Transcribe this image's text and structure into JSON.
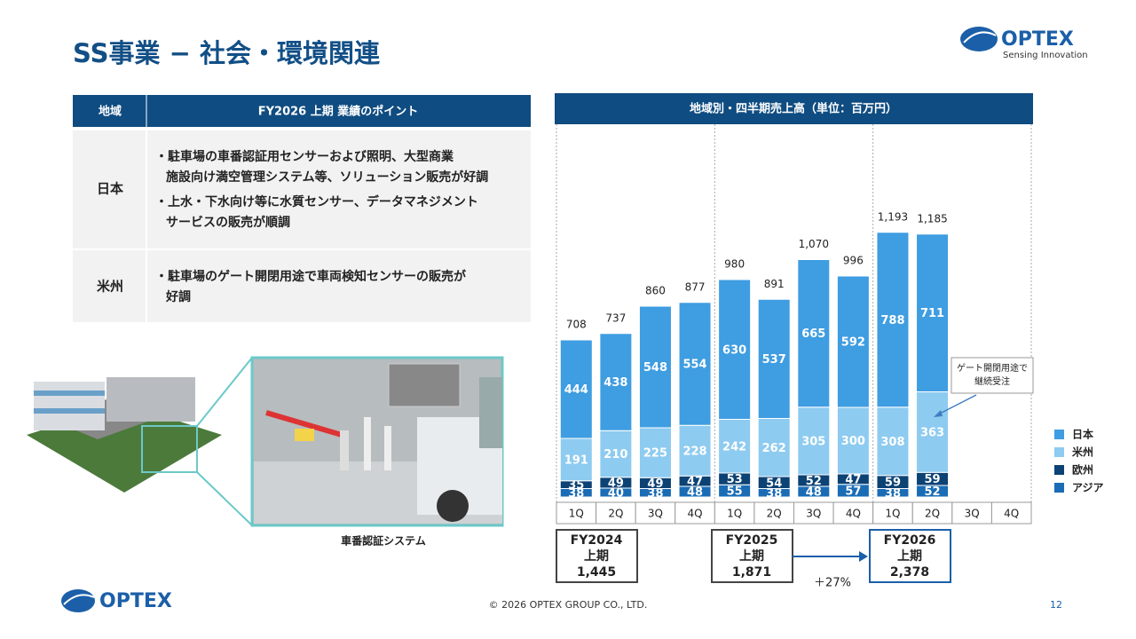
{
  "header": {
    "title": "SS事業 − 社会・環境関連",
    "logo": "OPTEX",
    "tagline": "Sensing Innovation"
  },
  "table": {
    "headers": [
      "地域",
      "FY2026 上期 業績のポイント"
    ],
    "rows": [
      {
        "region": "日本",
        "bullets": [
          [
            "・駐車場の車番認証用センサーおよび照明、大型商業",
            "施設向け満空管理システム等、ソリューション販売が好調"
          ],
          [
            "・上水・下水向け等に水質センサー、データマネジメント",
            "サービスの販売が順調"
          ]
        ]
      },
      {
        "region": "米州",
        "bullets": [
          [
            "・駐車場のゲート開閉用途で車両検知センサーの販売が",
            "好調"
          ]
        ]
      }
    ]
  },
  "image_caption": "車番認証システム",
  "chart_data": {
    "type": "bar",
    "stacked": true,
    "title": "地域別・四半期売上高（単位：百万円）",
    "categories": [
      "1Q",
      "2Q",
      "3Q",
      "4Q",
      "1Q",
      "2Q",
      "3Q",
      "4Q",
      "1Q",
      "2Q",
      "3Q",
      "4Q"
    ],
    "series": [
      {
        "name": "アジア",
        "color": "#1a6cb5",
        "values": [
          38,
          40,
          38,
          48,
          55,
          38,
          48,
          57,
          38,
          52,
          null,
          null
        ]
      },
      {
        "name": "欧州",
        "color": "#0c4274",
        "values": [
          35,
          49,
          49,
          47,
          53,
          54,
          52,
          47,
          59,
          59,
          null,
          null
        ]
      },
      {
        "name": "米州",
        "color": "#8ecbf0",
        "values": [
          191,
          210,
          225,
          228,
          242,
          262,
          305,
          300,
          308,
          363,
          null,
          null
        ]
      },
      {
        "name": "日本",
        "color": "#3f9de1",
        "values": [
          444,
          438,
          548,
          554,
          630,
          537,
          665,
          592,
          788,
          711,
          null,
          null
        ]
      }
    ],
    "totals": [
      708,
      737,
      860,
      877,
      980,
      891,
      1070,
      996,
      1193,
      1185,
      null,
      null
    ],
    "total_labels": [
      "708",
      "737",
      "860",
      "877",
      "980",
      "891",
      "1,070",
      "996",
      "1,193",
      "1,185",
      null,
      null
    ],
    "periods": [
      {
        "name": "FY2024",
        "half": "上期",
        "value": 1445,
        "value_label": "1,445"
      },
      {
        "name": "FY2025",
        "half": "上期",
        "value": 1871,
        "value_label": "1,871"
      },
      {
        "name": "FY2026",
        "half": "上期",
        "value": 2378,
        "value_label": "2,378"
      }
    ],
    "growth": "＋27%",
    "annotation": [
      "ゲート開閉用途で",
      "継続受注"
    ]
  },
  "footer": {
    "logo": "OPTEX",
    "copyright": "© 2026 OPTEX GROUP CO., LTD.",
    "page": 12
  }
}
